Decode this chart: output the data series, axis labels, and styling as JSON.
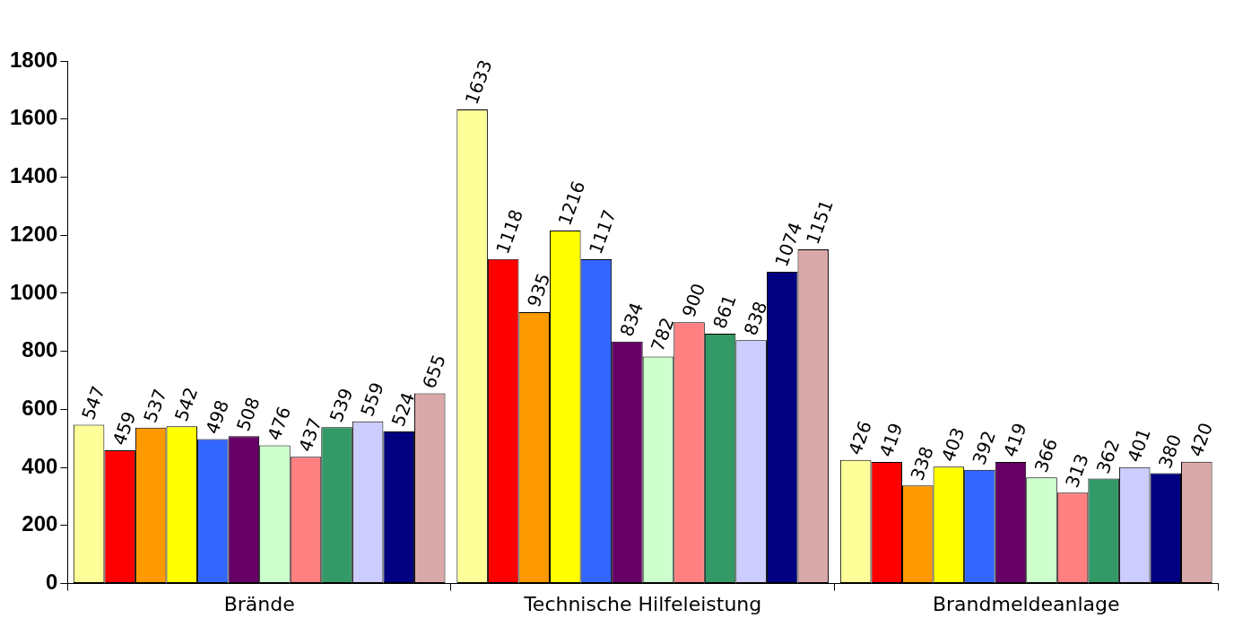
{
  "chart_data": {
    "type": "bar",
    "categories": [
      "Brände",
      "Technische Hilfeleistung",
      "Brandmeldeanlage"
    ],
    "series": [
      {
        "color": "#ffff99",
        "values": [
          547,
          1633,
          426
        ]
      },
      {
        "color": "#ff0000",
        "values": [
          459,
          1118,
          419
        ]
      },
      {
        "color": "#ff9900",
        "values": [
          537,
          935,
          338
        ]
      },
      {
        "color": "#ffff00",
        "values": [
          542,
          1216,
          403
        ]
      },
      {
        "color": "#3366ff",
        "values": [
          498,
          1117,
          392
        ]
      },
      {
        "color": "#660066",
        "values": [
          508,
          834,
          419
        ]
      },
      {
        "color": "#ccffcc",
        "values": [
          476,
          782,
          366
        ]
      },
      {
        "color": "#ff8080",
        "values": [
          437,
          900,
          313
        ]
      },
      {
        "color": "#339966",
        "values": [
          539,
          861,
          362
        ]
      },
      {
        "color": "#ccccff",
        "values": [
          559,
          838,
          401
        ]
      },
      {
        "color": "#000080",
        "values": [
          524,
          1074,
          380
        ]
      },
      {
        "color": "#d9a9a9",
        "values": [
          655,
          1151,
          420
        ]
      }
    ],
    "ylim": [
      0,
      1800
    ],
    "yticks": [
      0,
      200,
      400,
      600,
      800,
      1000,
      1200,
      1400,
      1600,
      1800
    ],
    "grid": false,
    "legend": false,
    "data_labels": true
  }
}
